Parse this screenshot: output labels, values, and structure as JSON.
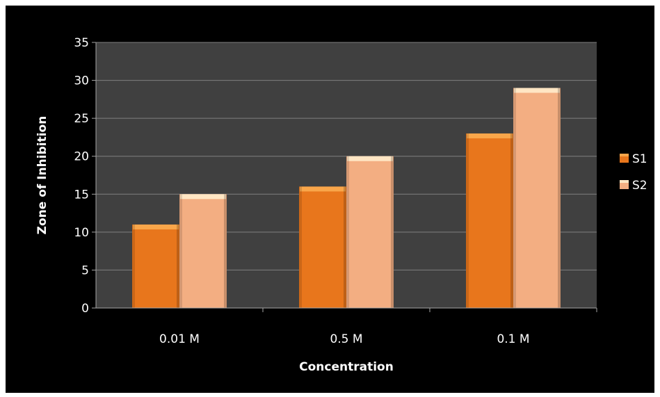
{
  "chart_data": {
    "type": "bar",
    "title": "",
    "xlabel": "Concentration",
    "ylabel": "Zone of Inhibition",
    "categories": [
      "0.01 M",
      "0.5 M",
      "0.1 M"
    ],
    "series": [
      {
        "name": "S1",
        "values": [
          11,
          16,
          23
        ],
        "color": "#e8761c",
        "top_color": "#f9a64a"
      },
      {
        "name": "S2",
        "values": [
          15,
          20,
          29
        ],
        "color": "#f3ae82",
        "top_color": "#ffe6c4"
      }
    ],
    "ylim": [
      0,
      35
    ],
    "yticks": [
      "0",
      "5",
      "10",
      "15",
      "20",
      "25",
      "30",
      "35"
    ],
    "grid": true,
    "legend_position": "right",
    "colors": {
      "frame": "#000000",
      "plot_area": "#404040",
      "gridline": "#7f7f7f",
      "axis": "#a6a6a6",
      "text": "#ffffff"
    }
  }
}
